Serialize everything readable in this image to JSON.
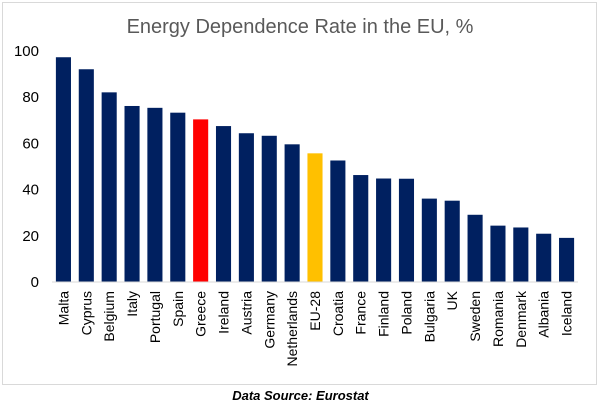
{
  "chart_data": {
    "type": "bar",
    "title": "Energy Dependence Rate in the EU, %",
    "xlabel": "",
    "ylabel": "",
    "ylim": [
      0,
      100
    ],
    "yticks": [
      0,
      20,
      40,
      60,
      80,
      100
    ],
    "grid": false,
    "categories": [
      "Malta",
      "Cyprus",
      "Belgium",
      "Italy",
      "Portugal",
      "Spain",
      "Greece",
      "Ireland",
      "Austria",
      "Germany",
      "Netherlands",
      "EU-28",
      "Croatia",
      "France",
      "Finland",
      "Poland",
      "Bulgaria",
      "UK",
      "Sweden",
      "Romania",
      "Denmark",
      "Albania",
      "Iceland"
    ],
    "values": [
      97.3,
      92.1,
      82.1,
      76.2,
      75.4,
      73.3,
      70.4,
      67.5,
      64.4,
      63.3,
      59.6,
      55.7,
      52.6,
      46.3,
      44.8,
      44.7,
      36.1,
      35.2,
      29.1,
      24.4,
      23.6,
      20.9,
      19.1
    ],
    "colors": {
      "default": "#002060",
      "highlight_greece": "#ff0000",
      "highlight_eu": "#ffc000",
      "axis": "#d9d9d9",
      "text": "#000000",
      "title": "#595959"
    },
    "bar_color_keys": [
      "default",
      "default",
      "default",
      "default",
      "default",
      "default",
      "highlight_greece",
      "default",
      "default",
      "default",
      "default",
      "highlight_eu",
      "default",
      "default",
      "default",
      "default",
      "default",
      "default",
      "default",
      "default",
      "default",
      "default",
      "default"
    ]
  },
  "footer": {
    "source": "Data Source: Eurostat"
  }
}
